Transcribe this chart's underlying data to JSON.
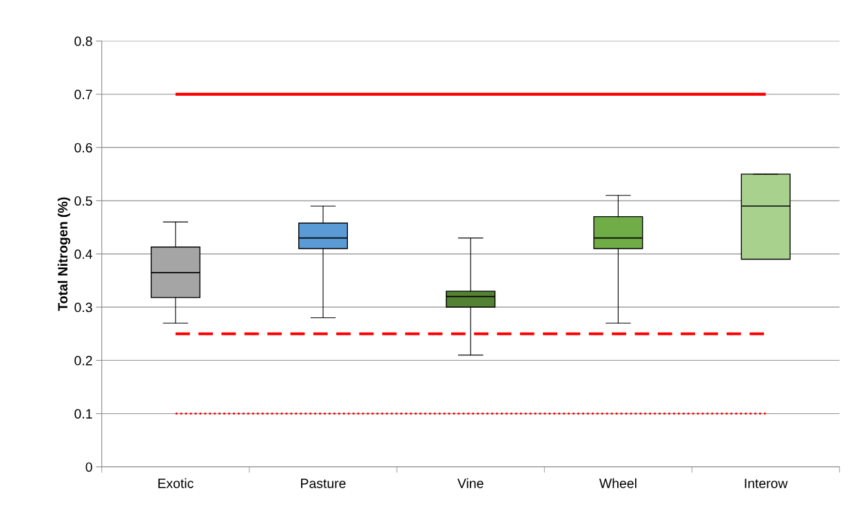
{
  "chart_data": {
    "type": "box",
    "ylabel": "Total Nitrogen (%)",
    "categories": [
      "Exotic",
      "Pasture",
      "Vine",
      "Wheel",
      "Interow"
    ],
    "colors": [
      "#a5a5a5",
      "#5b9bd5",
      "#548235",
      "#70ad47",
      "#a9d18e"
    ],
    "boxes": [
      {
        "low": 0.27,
        "q1": 0.318,
        "median": 0.365,
        "q3": 0.413,
        "high": 0.46
      },
      {
        "low": 0.28,
        "q1": 0.41,
        "median": 0.43,
        "q3": 0.458,
        "high": 0.49
      },
      {
        "low": 0.21,
        "q1": 0.3,
        "median": 0.32,
        "q3": 0.33,
        "high": 0.43
      },
      {
        "low": 0.27,
        "q1": 0.41,
        "median": 0.43,
        "q3": 0.47,
        "high": 0.51
      },
      {
        "low": 0.39,
        "q1": 0.39,
        "median": 0.49,
        "q3": 0.55,
        "high": 0.55
      }
    ],
    "ylim": [
      0,
      0.8
    ],
    "yticks": [
      0,
      0.1,
      0.2,
      0.3,
      0.4,
      0.5,
      0.6,
      0.7,
      0.8
    ],
    "grid": "y",
    "ref_lines": [
      {
        "axis": "y",
        "value": 0.7,
        "color": "#ff0000",
        "line_style": "solid"
      },
      {
        "axis": "y",
        "value": 0.25,
        "color": "#ff0000",
        "line_style": "dashed"
      },
      {
        "axis": "y",
        "value": 0.1,
        "color": "#ff0000",
        "line_style": "dotted"
      }
    ]
  }
}
